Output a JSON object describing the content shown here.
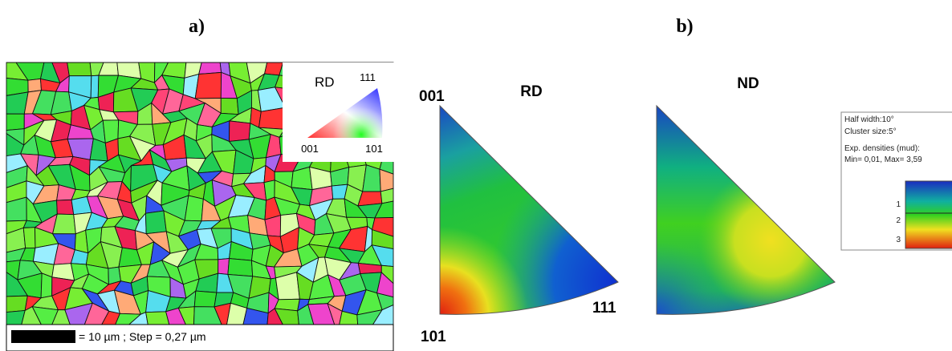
{
  "labels": {
    "a": "a)",
    "b": "b)"
  },
  "map": {
    "legend": {
      "direction": "RD",
      "top": "111",
      "left": "001",
      "right": "101"
    },
    "scale_bar": "= 10 µm ; Step = 0,27 µm"
  },
  "pole_figures": [
    {
      "direction": "RD",
      "top": "001",
      "right": "111",
      "bottom": "101"
    },
    {
      "direction": "ND"
    }
  ],
  "density_legend": {
    "lines": [
      "Half width:10°",
      "Cluster size:5°",
      "Exp. densities (mud):",
      "Min= 0,01, Max= 3,59"
    ],
    "ticks": [
      "1",
      "2",
      "3"
    ]
  }
}
